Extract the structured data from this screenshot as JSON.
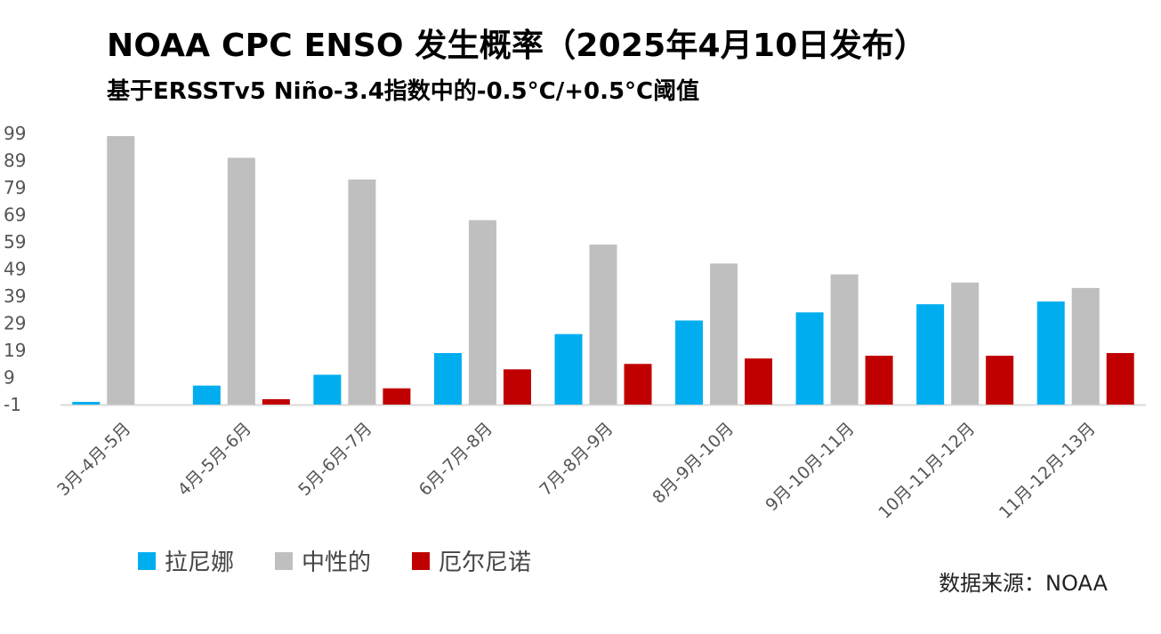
{
  "title": "NOAA CPC ENSO 发生概率（2025年4月10日发布）",
  "subtitle": "基于ERSSTv5 Niño-3.4指数中的-0.5°C/+0.5°C阈值",
  "source": "数据来源：NOAA",
  "chart_data": {
    "type": "bar",
    "categories": [
      "3月-4月-5月",
      "4月-5月-6月",
      "5月-6月-7月",
      "6月-7月-8月",
      "7月-8月-9月",
      "8月-9月-10月",
      "9月-10月-11月",
      "10月-11月-12月",
      "11月-12月-13月"
    ],
    "series": [
      {
        "name": "拉尼娜",
        "color": "#00AEEF",
        "values": [
          0,
          6,
          10,
          18,
          25,
          30,
          33,
          36,
          37
        ]
      },
      {
        "name": "中性的",
        "color": "#BFBFBF",
        "values": [
          98,
          90,
          82,
          67,
          58,
          51,
          47,
          44,
          42
        ]
      },
      {
        "name": "厄尔尼诺",
        "color": "#C00000",
        "values": [
          null,
          1,
          5,
          12,
          14,
          16,
          17,
          17,
          18
        ]
      }
    ],
    "yticks": [
      99,
      89,
      79,
      69,
      59,
      49,
      39,
      29,
      19,
      9,
      -1
    ],
    "ylim": [
      -1,
      99
    ],
    "legend_position": "bottom-left"
  }
}
